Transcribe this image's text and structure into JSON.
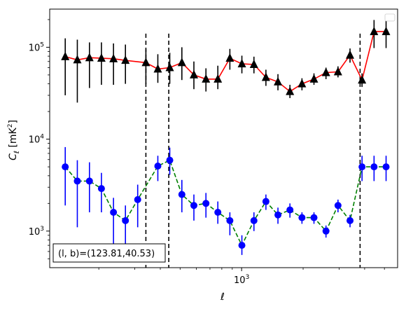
{
  "chart_data": {
    "type": "line",
    "xlabel": "ℓ",
    "ylabel": "C_ℓ [mK²]",
    "xscale": "log",
    "yscale": "log",
    "xlim": [
      115,
      5800
    ],
    "ylim": [
      400,
      260000
    ],
    "x_ticks": [
      {
        "value": 1000,
        "base": "10",
        "exp": "3"
      }
    ],
    "y_ticks": [
      {
        "value": 1000,
        "base": "10",
        "exp": "3"
      },
      {
        "value": 10000,
        "base": "10",
        "exp": "4"
      },
      {
        "value": 100000,
        "base": "10",
        "exp": "5"
      }
    ],
    "grid": false,
    "legend": {
      "placement": "top-right",
      "entries": []
    },
    "vlines": [
      340,
      440,
      3800
    ],
    "annotation": {
      "text": "(l, b)=(123.81,40.53)",
      "placement": "bottom-left"
    },
    "series": [
      {
        "marker": "triangle",
        "marker_color": "#000000",
        "line_color": "#ff0000",
        "line_style": "solid",
        "x": [
          137,
          157,
          180,
          206,
          236,
          270,
          340,
          389,
          445,
          510,
          584,
          669,
          765,
          876,
          1003,
          1149,
          1315,
          1506,
          1724,
          1974,
          2260,
          2588,
          2963,
          3393,
          3885,
          4448,
          5094
        ],
        "y": [
          79000,
          73000,
          77000,
          76000,
          75000,
          72000,
          68000,
          58000,
          60000,
          68000,
          50000,
          45000,
          45000,
          76000,
          66000,
          65000,
          47000,
          42000,
          33000,
          40000,
          45000,
          53000,
          54000,
          82000,
          44000,
          148000,
          148000
        ],
        "yerr_low": [
          49000,
          48000,
          41000,
          37000,
          36000,
          32000,
          28000,
          17000,
          20000,
          24000,
          15000,
          12000,
          10000,
          19000,
          14000,
          13000,
          9000,
          8000,
          5000,
          6000,
          6000,
          8000,
          7000,
          14000,
          7000,
          50000,
          50000
        ],
        "yerr_high": [
          46000,
          48000,
          36000,
          37000,
          35000,
          35000,
          27000,
          26000,
          27000,
          32000,
          20000,
          14000,
          18000,
          20000,
          15000,
          14000,
          10000,
          9000,
          6000,
          6000,
          7000,
          7000,
          8000,
          15000,
          8000,
          50000,
          50000
        ]
      },
      {
        "marker": "circle",
        "marker_color": "#0000ff",
        "line_color": "#008000",
        "line_style": "dashed",
        "x": [
          137,
          157,
          180,
          206,
          236,
          270,
          310,
          389,
          445,
          510,
          584,
          669,
          765,
          876,
          1003,
          1149,
          1315,
          1506,
          1724,
          1974,
          2260,
          2588,
          2963,
          3393,
          3885,
          4448,
          5094
        ],
        "y": [
          5000,
          3500,
          3500,
          2900,
          1600,
          1300,
          2200,
          5100,
          5900,
          2500,
          1900,
          2000,
          1600,
          1300,
          700,
          1300,
          2100,
          1500,
          1700,
          1400,
          1400,
          1000,
          1900,
          1300,
          5000,
          5000,
          5000
        ],
        "yerr_low": [
          3100,
          2400,
          1900,
          1300,
          900,
          800,
          1100,
          1600,
          1800,
          900,
          600,
          600,
          400,
          400,
          150,
          300,
          400,
          300,
          300,
          200,
          200,
          150,
          300,
          200,
          1500,
          1500,
          1500
        ],
        "yerr_high": [
          3200,
          2400,
          2100,
          1400,
          700,
          600,
          1000,
          1500,
          2200,
          1100,
          600,
          600,
          500,
          300,
          200,
          300,
          400,
          300,
          300,
          200,
          200,
          150,
          300,
          200,
          1600,
          1600,
          1600
        ]
      }
    ]
  }
}
